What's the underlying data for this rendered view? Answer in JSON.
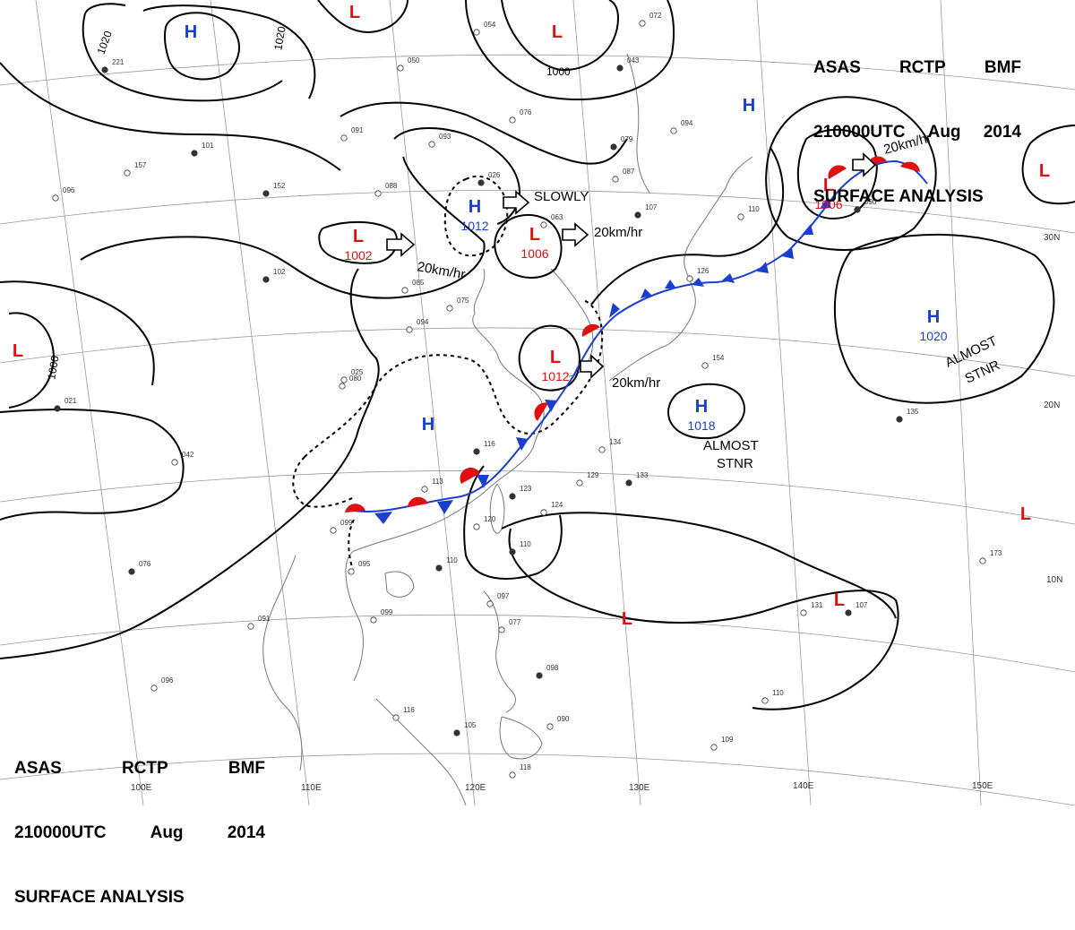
{
  "header_top": {
    "line1": [
      "ASAS",
      "RCTP",
      "BMF"
    ],
    "line2": [
      "210000UTC",
      "Aug",
      "2014"
    ],
    "line3": "SURFACE ANALYSIS"
  },
  "header_bottom": {
    "line1": [
      "ASAS",
      "RCTP",
      "BMF"
    ],
    "line2": [
      "210000UTC",
      "Aug",
      "2014"
    ],
    "line3": "SURFACE ANALYSIS"
  },
  "colors": {
    "high": "#1a3fd0",
    "low": "#e01010",
    "isobar": "#000000",
    "coast": "#777777",
    "grid": "#9a9a9a"
  },
  "longitude_labels": [
    "110E",
    "120E",
    "130E",
    "140E",
    "150E",
    "100E"
  ],
  "latitude_labels": [
    "30N",
    "20N",
    "10N"
  ],
  "pressure_centers": [
    {
      "type": "H",
      "value": ""
    },
    {
      "type": "L",
      "value": ""
    },
    {
      "type": "L",
      "value": ""
    },
    {
      "type": "H",
      "value": ""
    },
    {
      "type": "L",
      "value": "1002"
    },
    {
      "type": "H",
      "value": "1012"
    },
    {
      "type": "L",
      "value": "1006"
    },
    {
      "type": "L",
      "value": "1012"
    },
    {
      "type": "L",
      "value": "1006"
    },
    {
      "type": "L",
      "value": ""
    },
    {
      "type": "L",
      "value": ""
    },
    {
      "type": "H",
      "value": "1020"
    },
    {
      "type": "H",
      "value": "1018"
    },
    {
      "type": "H",
      "value": ""
    },
    {
      "type": "L",
      "value": ""
    },
    {
      "type": "L",
      "value": ""
    },
    {
      "type": "L",
      "value": ""
    }
  ],
  "isobar_labels": [
    "1020",
    "1020",
    "1000",
    "1000"
  ],
  "motion_labels": [
    "SLOWLY",
    "20km/hr",
    "20km/hr",
    "20km/hr",
    "20km/hr"
  ],
  "stationary_notes": [
    {
      "line1": "ALMOST",
      "line2": "STNR"
    },
    {
      "line1": "ALMOST",
      "line2": "STNR"
    }
  ],
  "station_values": [
    "221",
    "157",
    "096",
    "101",
    "050",
    "091",
    "152",
    "088",
    "093",
    "026",
    "063",
    "076",
    "079",
    "087",
    "094",
    "107",
    "110",
    "126",
    "090",
    "075",
    "085",
    "102",
    "094",
    "113",
    "116",
    "099",
    "095",
    "110",
    "099",
    "091",
    "123",
    "124",
    "120",
    "110",
    "134",
    "129",
    "133",
    "097",
    "077",
    "098",
    "090",
    "116",
    "105",
    "118",
    "154",
    "135",
    "173",
    "131",
    "107",
    "110",
    "109",
    "076",
    "096",
    "042",
    "021",
    "054",
    "072",
    "043",
    "025",
    "080"
  ]
}
